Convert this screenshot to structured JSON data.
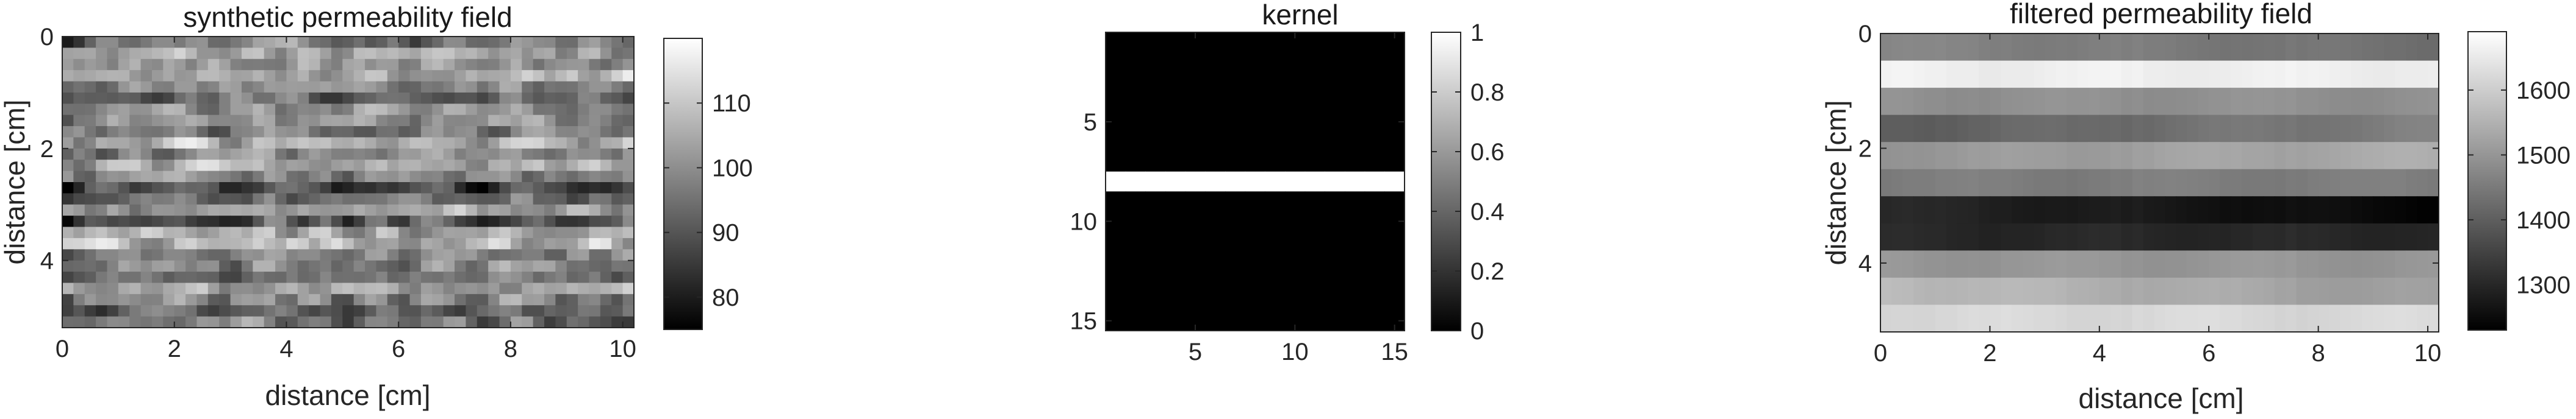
{
  "chart_data": [
    {
      "type": "heatmap",
      "title": "synthetic permeability field",
      "xlabel": "distance [cm]",
      "ylabel": "distance [cm]",
      "xlim": [
        0,
        10.2
      ],
      "ylim": [
        5.2,
        0
      ],
      "xticks": [
        0,
        2,
        4,
        6,
        8,
        10
      ],
      "yticks": [
        0,
        2,
        4
      ],
      "colormap": "gray",
      "colorbar": {
        "range": [
          75,
          120
        ],
        "ticks": [
          80,
          90,
          100,
          110
        ]
      },
      "grid": {
        "cols": 51,
        "rows": 26
      },
      "row_means": [
        96,
        103,
        100,
        107,
        98,
        94,
        99,
        101,
        96,
        106,
        97,
        104,
        99,
        86,
        95,
        100,
        91,
        104,
        108,
        100,
        99,
        97,
        103,
        98,
        92,
        96
      ],
      "column_means": [
        96,
        97,
        98,
        99,
        100,
        101,
        100,
        99,
        100,
        102,
        103,
        101,
        100,
        99,
        98,
        100,
        101,
        103,
        104,
        102,
        101,
        100,
        99,
        100,
        98,
        97,
        99,
        100,
        101,
        100,
        98,
        97,
        99,
        100,
        101,
        100,
        99,
        98,
        100,
        101,
        102,
        101,
        100,
        99,
        98,
        99,
        100,
        101,
        100,
        98,
        99
      ],
      "texture": "horizontally streaked random field, range 75–120"
    },
    {
      "type": "heatmap",
      "title": "kernel",
      "xlabel": "",
      "ylabel": "",
      "xlim": [
        0.5,
        15.5
      ],
      "ylim": [
        15.5,
        0.5
      ],
      "xticks": [
        5,
        10,
        15
      ],
      "yticks": [
        5,
        10,
        15
      ],
      "colormap": "gray",
      "colorbar": {
        "range": [
          0,
          1
        ],
        "ticks": [
          0,
          0.2,
          0.4,
          0.6,
          0.8,
          1
        ]
      },
      "grid": {
        "cols": 15,
        "rows": 15
      },
      "row_values": [
        0,
        0,
        0,
        0,
        0,
        0,
        0,
        1,
        0,
        0,
        0,
        0,
        0,
        0,
        0
      ]
    },
    {
      "type": "heatmap",
      "title": "filtered permeability field",
      "xlabel": "distance [cm]",
      "ylabel": "distance [cm]",
      "xlim": [
        0,
        10.2
      ],
      "ylim": [
        5.2,
        0
      ],
      "xticks": [
        0,
        2,
        4,
        6,
        8,
        10
      ],
      "yticks": [
        0,
        2,
        4
      ],
      "colormap": "gray",
      "colorbar": {
        "range": [
          1230,
          1690
        ],
        "ticks": [
          1300,
          1400,
          1500,
          1600
        ]
      },
      "grid": {
        "cols": 51,
        "rows": 11
      },
      "row_values": [
        1450,
        1660,
        1490,
        1430,
        1520,
        1455,
        1270,
        1300,
        1500,
        1540,
        1620
      ],
      "row_trend_left_to_right": [
        -20,
        0,
        0,
        30,
        20,
        0,
        -30,
        0,
        0,
        -30,
        0
      ]
    }
  ]
}
